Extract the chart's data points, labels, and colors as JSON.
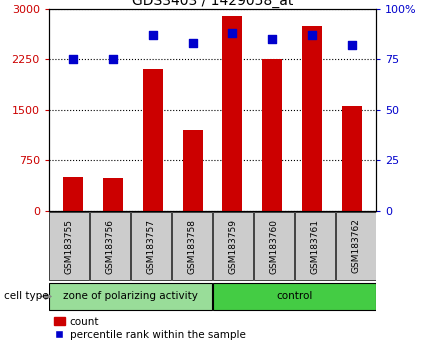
{
  "title": "GDS3403 / 1429058_at",
  "samples": [
    "GSM183755",
    "GSM183756",
    "GSM183757",
    "GSM183758",
    "GSM183759",
    "GSM183760",
    "GSM183761",
    "GSM183762"
  ],
  "counts": [
    500,
    490,
    2100,
    1200,
    2900,
    2250,
    2750,
    1550
  ],
  "percentiles": [
    75,
    75,
    87,
    83,
    88,
    85,
    87,
    82
  ],
  "group_labels": [
    "zone of polarizing activity",
    "control"
  ],
  "group_colors": [
    "#99dd99",
    "#44cc44"
  ],
  "n_zone": 4,
  "bar_color": "#cc0000",
  "dot_color": "#0000cc",
  "left_ylim": [
    0,
    3000
  ],
  "right_ylim": [
    0,
    100
  ],
  "left_yticks": [
    0,
    750,
    1500,
    2250,
    3000
  ],
  "right_yticks": [
    0,
    25,
    50,
    75,
    100
  ],
  "right_yticklabels": [
    "0",
    "25",
    "50",
    "75",
    "100%"
  ],
  "left_color": "#cc0000",
  "right_color": "#0000cc",
  "background_label": "#cccccc",
  "figsize": [
    4.25,
    3.54
  ],
  "dpi": 100
}
